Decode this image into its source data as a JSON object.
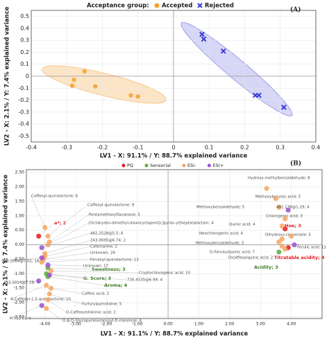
{
  "chart_data": [
    {
      "type": "scatter",
      "panel_label": "(A)",
      "legend_title": "Acceptance group:",
      "xlabel": "LV1 - X: 91.1% / Y: 88.7% explained variance",
      "ylabel": "LV2 - X: 2.1% / Y: 7.4% explained variance",
      "xlim": [
        -0.4,
        0.4
      ],
      "xticks": [
        -0.4,
        -0.3,
        -0.2,
        -0.1,
        0,
        0.1,
        0.2,
        0.3,
        0.4
      ],
      "ylim": [
        -0.55,
        0.55
      ],
      "yticks": [
        -0.5,
        -0.4,
        -0.3,
        -0.2,
        -0.1,
        0,
        0.1,
        0.2,
        0.3,
        0.4,
        0.5
      ],
      "series": [
        {
          "name": "Accepted",
          "color": "#f5a030",
          "marker": "circle",
          "x": [
            -0.25,
            -0.28,
            -0.285,
            -0.22,
            -0.12,
            -0.1
          ],
          "values": [
            0.04,
            -0.03,
            -0.08,
            -0.085,
            -0.16,
            -0.17
          ]
        },
        {
          "name": "Rejected",
          "color": "#3a3ad6",
          "marker": "cross",
          "x": [
            0.08,
            0.085,
            0.14,
            0.23,
            0.24,
            0.31
          ],
          "values": [
            0.35,
            0.31,
            0.21,
            -0.16,
            -0.16,
            -0.26
          ]
        }
      ]
    },
    {
      "type": "scatter",
      "panel_label": "(B)",
      "xlabel": "LV1 - X: 91.1% / Y: 88.7% explained variance",
      "ylabel": "LV2 - X: 2.1% / Y: 7.4% explained variance",
      "xlim": [
        -4.6,
        5.0
      ],
      "xticks": [
        {
          "value": -4,
          "label": "-4.00"
        },
        {
          "value": -3,
          "label": "-3.00"
        },
        {
          "value": -2,
          "label": "-2.00"
        },
        {
          "value": -1,
          "label": "-1.00"
        },
        {
          "value": 0,
          "label": "0.00"
        },
        {
          "value": 1,
          "label": "1.00"
        },
        {
          "value": 2,
          "label": "2.00"
        },
        {
          "value": 3,
          "label": "3.00"
        },
        {
          "value": 4,
          "label": "4.00"
        }
      ],
      "ylim": [
        -2.55,
        2.6
      ],
      "yticks": [
        {
          "value": -2.5,
          "label": "-2.50"
        },
        {
          "value": -2,
          "label": "-2.00"
        },
        {
          "value": -1.5,
          "label": "-1.50"
        },
        {
          "value": -1,
          "label": "-1.00"
        },
        {
          "value": -0.5,
          "label": "-0.50"
        },
        {
          "value": 0,
          "label": "0.00"
        },
        {
          "value": 0.5,
          "label": "0.50"
        },
        {
          "value": 1,
          "label": "1.00"
        },
        {
          "value": 1.5,
          "label": "1.50"
        },
        {
          "value": 2,
          "label": "2.00"
        },
        {
          "value": 2.5,
          "label": "2.50"
        }
      ],
      "series": [
        {
          "name": "PQ",
          "color": "#e41a1c",
          "marker": "circle",
          "labels": [
            "a*; 2",
            "Hue; 3",
            "Titratable acidity; 4"
          ],
          "x": [
            -4.2,
            3.8,
            3.9
          ],
          "values": [
            0.3,
            0.55,
            -0.1
          ]
        },
        {
          "name": "Sensorial",
          "color": "#5aae3c",
          "marker": "circle",
          "labels": [
            "Sweetness; 3",
            "G. Score; 3",
            "Aroma; 4",
            "Acidity; 3"
          ],
          "x": [
            -3.9,
            -3.95,
            -3.9,
            3.6
          ],
          "values": [
            -0.8,
            -1.0,
            -1.1,
            -0.25
          ]
        },
        {
          "name": "ESI-",
          "color": "#f4a460",
          "marker": "circle",
          "labels": [
            "Hydroxy-methylbenzaldehyde; 8",
            "Methoxybenzoic acid; 3",
            "Methoxybenzaldehyde; 5",
            "Chlorogenic acid; 3",
            "Quinic acid; 4",
            "Dihydroxy-cinnamate; 5",
            "Neochlorogenic acid; 4",
            "Methoxybenzaldehyde; 3",
            "O-Feruloylquinic acid; 7",
            "Dicaffeoylquinic acid; 2",
            "Caffeoyl-quinolactone; 6",
            "Caffeoyl-quinolactone; 9",
            "Pentamethoxyflavanone; 5",
            "[Octahydro-dimethyl-dioxocyclopent[c]pyran-yl]heptatalactam; 4",
            "243.0695@6.74; 2",
            "Cafamarine; 2",
            "Unknown; 26",
            "Feruloyl-quinolactone; 13",
            "Cryptochlorogenic acid; 10",
            "4-Caffeoyl-1,5-quinolactone; 10",
            "Caffeic acid; 2",
            "Furfurylpyrrolidine; 5",
            "O-Caffeoylshikimic acid; 2",
            "O-β-D-Glucopyranuronosyl-D-mannose; 4"
          ],
          "x": [
            3.2,
            3.5,
            3.6,
            3.8,
            3.7,
            4.0,
            3.7,
            3.6,
            3.7,
            3.8,
            -4.0,
            -3.9,
            -3.85,
            -3.9,
            -4.0,
            -4.0,
            -4.05,
            -4.1,
            -3.8,
            -3.95,
            -3.8,
            -3.85,
            -3.9,
            -3.95
          ],
          "values": [
            1.95,
            1.6,
            1.3,
            0.9,
            0.65,
            0.3,
            0.2,
            0.1,
            -0.05,
            -0.15,
            0.6,
            0.3,
            0.1,
            0.0,
            -0.3,
            -0.4,
            -0.5,
            -0.6,
            -0.9,
            -1.4,
            -1.5,
            -1.7,
            -1.9,
            -2.2
          ]
        },
        {
          "name": "ESI+",
          "color": "#9a4fd0",
          "marker": "circle",
          "labels": [
            "481.138@1.29; 4",
            "Ferulic acid; 11",
            "482.2528@5.5; 6",
            "Unknown; 17",
            "298.1064@7.01; 16",
            "726.4535@6.99; 4",
            "412.1014@7.28; 4",
            "PI (33.0); 4"
          ],
          "x": [
            3.9,
            4.1,
            -4.1,
            -3.9,
            -4.1,
            -3.85,
            -4.2,
            -4.1
          ],
          "values": [
            1.2,
            0.0,
            -0.1,
            -0.7,
            -0.45,
            -1.05,
            -1.25,
            -2.1
          ]
        }
      ]
    }
  ]
}
